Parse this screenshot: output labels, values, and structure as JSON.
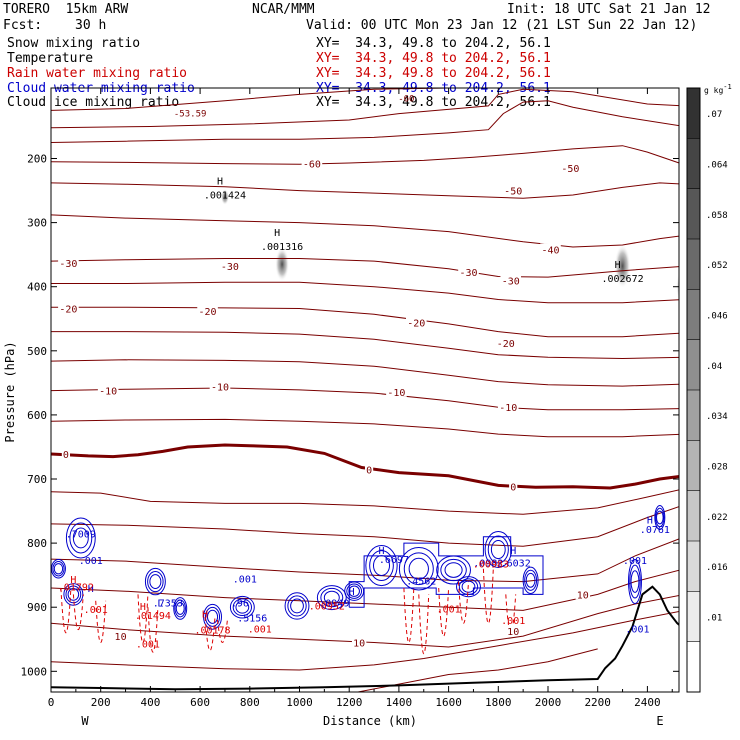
{
  "header": {
    "model": "TORERO  15km ARW",
    "center": "NCAR/MMM",
    "init": "Init: 18 UTC Sat 21 Jan 12",
    "fcst_label": "Fcst:",
    "fcst_value": "30 h",
    "valid": "Valid: 00 UTC Mon 23 Jan 12 (21 LST Sun 22 Jan 12)"
  },
  "fields": [
    {
      "name": "Snow mixing ratio",
      "xy": "XY=  34.3, 49.8 to 204.2, 56.1",
      "color": "#000000",
      "xy_color": "#000000"
    },
    {
      "name": "Temperature",
      "xy": "XY=  34.3, 49.8 to 204.2, 56.1",
      "color": "#000000",
      "xy_color": "#cc0000"
    },
    {
      "name": "Rain water mixing ratio",
      "xy": "XY=  34.3, 49.8 to 204.2, 56.1",
      "color": "#cc0000",
      "xy_color": "#cc0000"
    },
    {
      "name": "Cloud water mixing ratio",
      "xy": "XY=  34.3, 49.8 to 204.2, 56.1",
      "color": "#0000cc",
      "xy_color": "#0000cc"
    },
    {
      "name": "Cloud ice mixing ratio",
      "xy": "XY=  34.3, 49.8 to 204.2, 56.1",
      "color": "#000000",
      "xy_color": "#000000"
    }
  ],
  "colors": {
    "temperature": "#7a0000",
    "rain": "#dd0000",
    "cloud_water": "#0000cc",
    "terrain": "#000000",
    "frame": "#000000"
  },
  "chart_data": {
    "type": "contour",
    "xlabel": "Distance (km)",
    "ylabel": "Pressure (hPa)",
    "xlim": [
      0,
      2550
    ],
    "ylim": [
      1050,
      90
    ],
    "x_ticks": [
      "0",
      "200",
      "400",
      "600",
      "800",
      "1000",
      "1200",
      "1400",
      "1600",
      "1800",
      "2000",
      "2200",
      "2400"
    ],
    "y_ticks": [
      "200",
      "300",
      "400",
      "500",
      "600",
      "700",
      "800",
      "900",
      "1000"
    ],
    "end_labels": {
      "left": "W",
      "right": "E"
    },
    "colorbar": {
      "unit": "g kg",
      "unit_exp": "-1",
      "levels": [
        ".01",
        ".016",
        ".022",
        ".028",
        ".034",
        ".04",
        ".046",
        ".052",
        ".058",
        ".064",
        ".07"
      ]
    },
    "temperature_labels": [
      {
        "text": "-60",
        "x": 1050,
        "p": 208
      },
      {
        "text": "-50",
        "x": 1860,
        "p": 250
      },
      {
        "text": "-50",
        "x": 2090,
        "p": 215
      },
      {
        "text": "-40",
        "x": 2010,
        "p": 342
      },
      {
        "text": "-30",
        "x": 70,
        "p": 363
      },
      {
        "text": "-30",
        "x": 720,
        "p": 368
      },
      {
        "text": "-30",
        "x": 1680,
        "p": 377
      },
      {
        "text": "-30",
        "x": 1850,
        "p": 390
      },
      {
        "text": "-20",
        "x": 70,
        "p": 434
      },
      {
        "text": "-20",
        "x": 630,
        "p": 438
      },
      {
        "text": "-20",
        "x": 1470,
        "p": 456
      },
      {
        "text": "-20",
        "x": 1830,
        "p": 488
      },
      {
        "text": "-10",
        "x": 230,
        "p": 562
      },
      {
        "text": "-10",
        "x": 680,
        "p": 556
      },
      {
        "text": "-10",
        "x": 1390,
        "p": 564
      },
      {
        "text": "-10",
        "x": 1840,
        "p": 588
      },
      {
        "text": "0",
        "x": 60,
        "p": 661
      },
      {
        "text": "0",
        "x": 1280,
        "p": 685
      },
      {
        "text": "0",
        "x": 1860,
        "p": 712
      },
      {
        "text": "10",
        "x": 280,
        "p": 945
      },
      {
        "text": "10",
        "x": 1240,
        "p": 955
      },
      {
        "text": "10",
        "x": 1860,
        "p": 937
      },
      {
        "text": "10",
        "x": 2140,
        "p": 880
      }
    ],
    "snow_maxima": [
      {
        "label": "H",
        "value": ".001424",
        "x": 700,
        "p": 250
      },
      {
        "label": "H",
        "value": ".001316",
        "x": 930,
        "p": 330
      },
      {
        "label": "H",
        "value": ".002672",
        "x": 2300,
        "p": 380
      }
    ],
    "cloud_water_labels": [
      {
        "text": ".7009",
        "x": 120,
        "p": 785
      },
      {
        "text": ".001",
        "x": 160,
        "p": 826
      },
      {
        "text": "H",
        "x": 160,
        "p": 870
      },
      {
        "text": ".7353",
        "x": 470,
        "p": 893
      },
      {
        "text": "L",
        "x": 440,
        "p": 893
      },
      {
        "text": ".96",
        "x": 760,
        "p": 893
      },
      {
        "text": ".001",
        "x": 780,
        "p": 855
      },
      {
        "text": ".5156",
        "x": 810,
        "p": 916
      },
      {
        "text": "H",
        "x": 1210,
        "p": 875
      },
      {
        "text": ".0949",
        "x": 1140,
        "p": 893
      },
      {
        "text": "H",
        "x": 1330,
        "p": 811
      },
      {
        "text": ".6697",
        "x": 1380,
        "p": 825
      },
      {
        "text": ".4562",
        "x": 1490,
        "p": 858
      },
      {
        "text": ".0982",
        "x": 1760,
        "p": 830
      },
      {
        "text": ".6032",
        "x": 1870,
        "p": 830
      },
      {
        "text": "H",
        "x": 1860,
        "p": 811
      },
      {
        "text": "H",
        "x": 2410,
        "p": 763
      },
      {
        "text": ".0761",
        "x": 2430,
        "p": 778
      },
      {
        "text": ".001",
        "x": 2350,
        "p": 826
      },
      {
        "text": ".001",
        "x": 2360,
        "p": 933
      }
    ],
    "rain_labels": [
      {
        "text": "H",
        "x": 90,
        "p": 856
      },
      {
        "text": ".01792",
        "x": 100,
        "p": 868
      },
      {
        "text": ".001",
        "x": 180,
        "p": 903
      },
      {
        "text": "H",
        "x": 370,
        "p": 898
      },
      {
        "text": ".01494",
        "x": 410,
        "p": 912
      },
      {
        "text": ".001",
        "x": 390,
        "p": 957
      },
      {
        "text": "H",
        "x": 620,
        "p": 910
      },
      {
        "text": ".00178",
        "x": 650,
        "p": 935
      },
      {
        "text": ".001",
        "x": 840,
        "p": 933
      },
      {
        "text": ".00952",
        "x": 1110,
        "p": 897
      },
      {
        "text": ".001",
        "x": 1600,
        "p": 902
      },
      {
        "text": ".00983",
        "x": 1770,
        "p": 832
      },
      {
        "text": ".001",
        "x": 1860,
        "p": 920
      }
    ],
    "misc_labels": [
      {
        "text": "-53.59",
        "x": 560,
        "p": 128,
        "color": "#7a0000"
      },
      {
        "text": "-60",
        "x": 1430,
        "p": 105,
        "color": "#7a0000"
      }
    ]
  }
}
